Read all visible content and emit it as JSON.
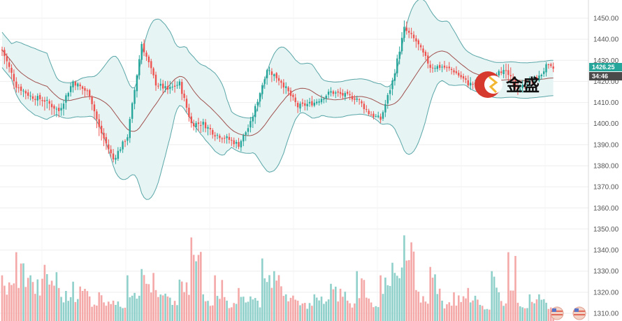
{
  "chart_data": {
    "type": "candlestick",
    "title": "",
    "xlabel": "",
    "ylabel": "",
    "ylim": [
      1305,
      1455
    ],
    "y_ticks": [
      1310,
      1320,
      1330,
      1340,
      1350,
      1360,
      1370,
      1380,
      1390,
      1400,
      1410,
      1420,
      1430,
      1440,
      1450
    ],
    "y_tick_labels": [
      "1310.00",
      "1320.00",
      "1330.00",
      "1340.00",
      "1350.00",
      "1360.00",
      "1370.00",
      "1380.00",
      "1390.00",
      "1400.00",
      "1410.00",
      "1420.00",
      "1430.00",
      "1440.00",
      "1450.00"
    ],
    "grid": true,
    "indicators": [
      "Bollinger Bands (upper, middle, lower)",
      "Volume"
    ],
    "current_price_label": "1426.25",
    "countdown_label": "34:46",
    "watermark_text": "金盛",
    "colors": {
      "up": "#26a69a",
      "down": "#ef5350",
      "band_line": "#5aa6a8",
      "band_fill": "#e6f4f4",
      "middle_line": "#a0524f",
      "volume_up": "#8fd0ca",
      "volume_down": "#f4a9a8",
      "price_tag": "#26a69a",
      "countdown_tag": "#4a4a4a"
    },
    "anchors": [
      [
        0,
        1435,
        1440,
        1425
      ],
      [
        6,
        1418,
        1420,
        1410
      ],
      [
        12,
        1413,
        1416,
        1409
      ],
      [
        18,
        1411,
        1412,
        1400
      ],
      [
        24,
        1406,
        1410,
        1397
      ],
      [
        30,
        1420,
        1421,
        1413
      ],
      [
        37,
        1414,
        1416,
        1408
      ],
      [
        41,
        1398,
        1402,
        1385
      ],
      [
        47,
        1383,
        1386,
        1382
      ],
      [
        53,
        1394,
        1396,
        1388
      ],
      [
        59,
        1438,
        1440,
        1430
      ],
      [
        65,
        1419,
        1421,
        1415
      ],
      [
        70,
        1416,
        1425,
        1410
      ],
      [
        75,
        1419,
        1422,
        1414
      ],
      [
        80,
        1400,
        1404,
        1392
      ],
      [
        85,
        1400,
        1402,
        1392
      ],
      [
        90,
        1395,
        1398,
        1390
      ],
      [
        95,
        1393,
        1395,
        1387
      ],
      [
        100,
        1390,
        1393,
        1386
      ],
      [
        105,
        1400,
        1402,
        1392
      ],
      [
        112,
        1426,
        1427,
        1418
      ],
      [
        118,
        1420,
        1422,
        1412
      ],
      [
        125,
        1408,
        1410,
        1403
      ],
      [
        132,
        1410,
        1414,
        1408
      ],
      [
        139,
        1415,
        1417,
        1411
      ],
      [
        146,
        1413,
        1416,
        1410
      ],
      [
        150,
        1412,
        1413,
        1408
      ],
      [
        155,
        1405,
        1408,
        1403
      ],
      [
        160,
        1402,
        1404,
        1400
      ],
      [
        165,
        1420,
        1424,
        1413
      ],
      [
        170,
        1445,
        1452,
        1440
      ],
      [
        175,
        1439,
        1442,
        1433
      ],
      [
        181,
        1427,
        1430,
        1421
      ],
      [
        186,
        1427,
        1430,
        1424
      ],
      [
        191,
        1425,
        1428,
        1422
      ],
      [
        197,
        1419,
        1424,
        1416
      ],
      [
        202,
        1418,
        1420,
        1416
      ],
      [
        207,
        1420,
        1424,
        1419
      ],
      [
        210,
        1426,
        1428,
        1424
      ],
      [
        214,
        1423,
        1433,
        1412
      ],
      [
        218,
        1416,
        1420,
        1414
      ],
      [
        223,
        1420,
        1423,
        1418
      ],
      [
        227,
        1422,
        1425,
        1420
      ],
      [
        230,
        1427,
        1428,
        1425
      ],
      [
        233,
        1426,
        1428,
        1424
      ]
    ],
    "volume": [
      [
        0,
        1328,
        "up"
      ],
      [
        6,
        1339,
        "up"
      ],
      [
        12,
        1328,
        "down"
      ],
      [
        18,
        1333,
        "down"
      ],
      [
        24,
        1322,
        "up"
      ],
      [
        30,
        1325,
        "down"
      ],
      [
        37,
        1318,
        "up"
      ],
      [
        41,
        1320,
        "down"
      ],
      [
        47,
        1316,
        "up"
      ],
      [
        53,
        1328,
        "up"
      ],
      [
        59,
        1331,
        "up"
      ],
      [
        65,
        1321,
        "up"
      ],
      [
        70,
        1318,
        "down"
      ],
      [
        75,
        1326,
        "down"
      ],
      [
        80,
        1346,
        "down"
      ],
      [
        85,
        1319,
        "up"
      ],
      [
        90,
        1328,
        "up"
      ],
      [
        95,
        1316,
        "up"
      ],
      [
        100,
        1322,
        "up"
      ],
      [
        105,
        1318,
        "down"
      ],
      [
        110,
        1336,
        "up"
      ],
      [
        115,
        1330,
        "down"
      ],
      [
        120,
        1319,
        "up"
      ],
      [
        125,
        1316,
        "up"
      ],
      [
        132,
        1319,
        "up"
      ],
      [
        139,
        1324,
        "up"
      ],
      [
        146,
        1316,
        "down"
      ],
      [
        150,
        1330,
        "down"
      ],
      [
        155,
        1317,
        "down"
      ],
      [
        160,
        1328,
        "up"
      ],
      [
        165,
        1334,
        "down"
      ],
      [
        170,
        1347,
        "down"
      ],
      [
        175,
        1321,
        "down"
      ],
      [
        181,
        1332,
        "down"
      ],
      [
        186,
        1316,
        "up"
      ],
      [
        191,
        1320,
        "up"
      ],
      [
        197,
        1322,
        "up"
      ],
      [
        202,
        1314,
        "down"
      ],
      [
        207,
        1330,
        "down"
      ],
      [
        210,
        1320,
        "up"
      ],
      [
        214,
        1339,
        "down"
      ],
      [
        218,
        1315,
        "down"
      ],
      [
        223,
        1319,
        "down"
      ],
      [
        227,
        1319,
        "up"
      ],
      [
        230,
        1315,
        "up"
      ],
      [
        233,
        1312,
        "up"
      ]
    ]
  }
}
